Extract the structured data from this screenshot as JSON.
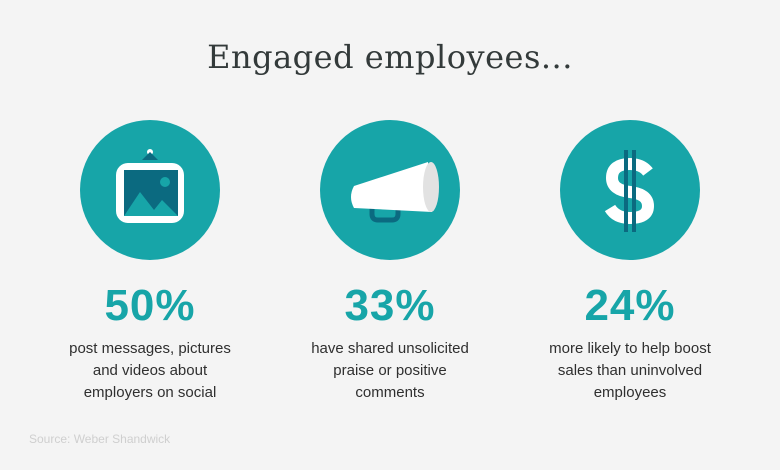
{
  "title": "Engaged employees...",
  "colors": {
    "accent": "#17a5a8",
    "icon_dark": "#0b6a80",
    "background": "#f4f4f4"
  },
  "stats": [
    {
      "icon": "framed-picture-icon",
      "value": "50%",
      "lines": [
        "post messages, pictures",
        "and videos about",
        "employers on social"
      ]
    },
    {
      "icon": "megaphone-icon",
      "value": "33%",
      "lines": [
        "have shared unsolicited",
        "praise or positive",
        "comments"
      ]
    },
    {
      "icon": "dollar-sign-icon",
      "value": "24%",
      "lines": [
        "more likely to help boost",
        "sales than uninvolved",
        "employees"
      ]
    }
  ],
  "source": "Source: Weber Shandwick"
}
